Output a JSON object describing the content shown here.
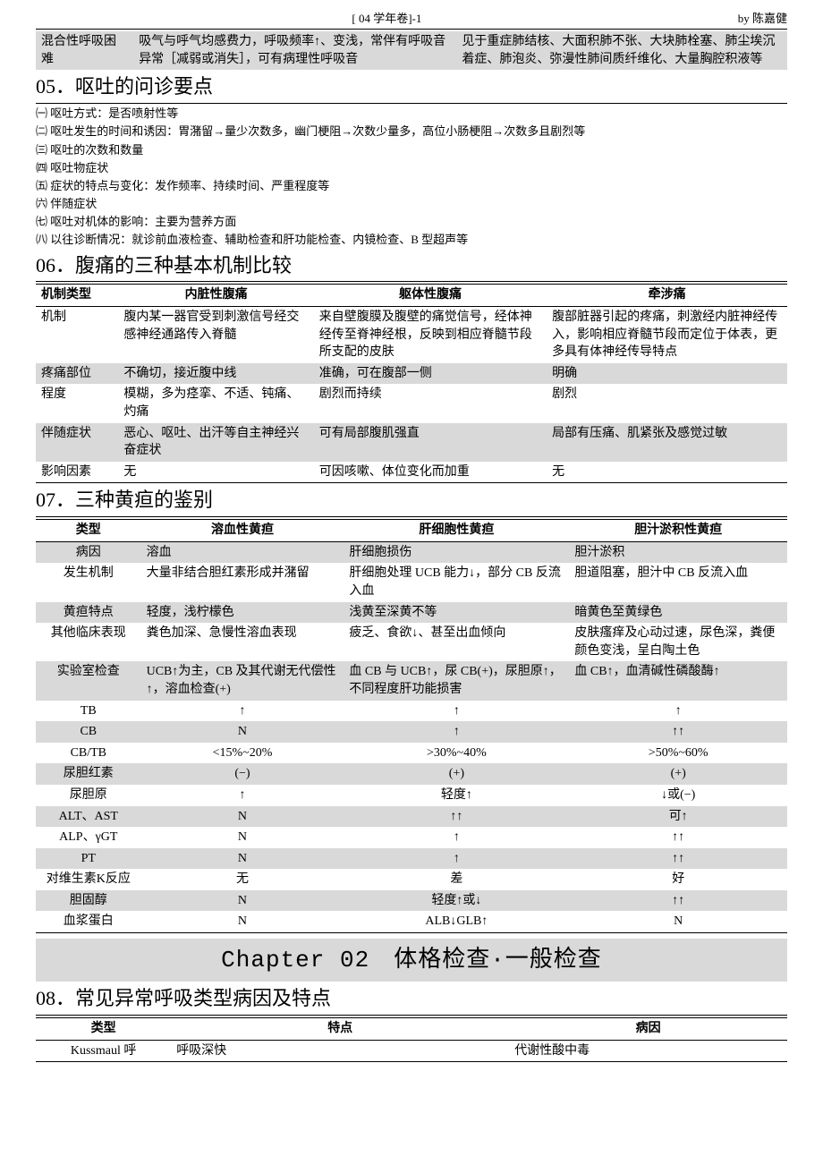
{
  "header": {
    "center": "[ 04 学年卷]-1",
    "right": "by 陈嘉健"
  },
  "table_top": {
    "rows": [
      {
        "grey": true,
        "c0": "混合性呼吸困难",
        "c1": "吸气与呼气均感费力，呼吸频率↑、变浅，常伴有呼吸音异常［减弱或消失］，可有病理性呼吸音",
        "c2": "见于重症肺结核、大面积肺不张、大块肺栓塞、肺尘埃沉着症、肺泡炎、弥漫性肺间质纤维化、大量胸腔积液等"
      }
    ]
  },
  "sec05": {
    "title": "05．呕吐的问诊要点",
    "items": [
      "㈠ 呕吐方式：是否喷射性等",
      "㈡ 呕吐发生的时间和诱因：胃潴留→量少次数多，幽门梗阻→次数少量多，高位小肠梗阻→次数多且剧烈等",
      "㈢ 呕吐的次数和数量",
      "㈣ 呕吐物症状",
      "㈤ 症状的特点与变化：发作频率、持续时间、严重程度等",
      "㈥ 伴随症状",
      "㈦ 呕吐对机体的影响：主要为营养方面",
      "㈧ 以往诊断情况：就诊前血液检查、辅助检查和肝功能检查、内镜检查、B 型超声等"
    ]
  },
  "sec06": {
    "title": "06．腹痛的三种基本机制比较",
    "headers": [
      "机制类型",
      "内脏性腹痛",
      "躯体性腹痛",
      "牵涉痛"
    ],
    "rows": [
      {
        "grey": false,
        "c0": "机制",
        "c1": "腹内某一器官受到刺激信号经交感神经通路传入脊髓",
        "c2": "来自壁腹膜及腹壁的痛觉信号，经体神经传至脊神经根，反映到相应脊髓节段所支配的皮肤",
        "c3": "腹部脏器引起的疼痛，刺激经内脏神经传入，影响相应脊髓节段而定位于体表，更多具有体神经传导特点"
      },
      {
        "grey": true,
        "c0": "疼痛部位",
        "c1": "不确切，接近腹中线",
        "c2": "准确，可在腹部一侧",
        "c3": "明确"
      },
      {
        "grey": false,
        "c0": "程度",
        "c1": "模糊，多为痉挛、不适、钝痛、灼痛",
        "c2": "剧烈而持续",
        "c3": "剧烈"
      },
      {
        "grey": true,
        "c0": "伴随症状",
        "c1": "恶心、呕吐、出汗等自主神经兴奋症状",
        "c2": "可有局部腹肌强直",
        "c3": "局部有压痛、肌紧张及感觉过敏"
      },
      {
        "grey": false,
        "c0": "影响因素",
        "c1": "无",
        "c2": "可因咳嗽、体位变化而加重",
        "c3": "无"
      }
    ]
  },
  "sec07": {
    "title": "07．三种黄疸的鉴别",
    "headers": [
      "类型",
      "溶血性黄疸",
      "肝细胞性黄疸",
      "胆汁淤积性黄疸"
    ],
    "rows": [
      {
        "grey": true,
        "c0": "病因",
        "c1": "溶血",
        "c2": "肝细胞损伤",
        "c3": "胆汁淤积"
      },
      {
        "grey": false,
        "c0": "发生机制",
        "c1": "大量非结合胆红素形成并潴留",
        "c2": "肝细胞处理 UCB 能力↓，部分 CB 反流入血",
        "c3": "胆道阻塞，胆汁中 CB 反流入血"
      },
      {
        "grey": true,
        "c0": "黄疸特点",
        "c1": "轻度，浅柠檬色",
        "c2": "浅黄至深黄不等",
        "c3": "暗黄色至黄绿色"
      },
      {
        "grey": false,
        "c0": "其他临床表现",
        "c1": "粪色加深、急慢性溶血表现",
        "c2": "疲乏、食欲↓、甚至出血倾向",
        "c3": "皮肤瘙痒及心动过速，尿色深，粪便颜色变浅，呈白陶土色"
      },
      {
        "grey": true,
        "c0": "实验室检查",
        "c1": "UCB↑为主，CB 及其代谢无代偿性↑，溶血检查(+)",
        "c2": "血 CB 与 UCB↑，尿 CB(+)，尿胆原↑，不同程度肝功能损害",
        "c3": "血 CB↑，血清碱性磷酸酶↑"
      },
      {
        "grey": false,
        "c0": "TB",
        "c1": "↑",
        "c2": "↑",
        "c3": "↑"
      },
      {
        "grey": true,
        "c0": "CB",
        "c1": "N",
        "c2": "↑",
        "c3": "↑↑"
      },
      {
        "grey": false,
        "c0": "CB/TB",
        "c1": "<15%~20%",
        "c2": ">30%~40%",
        "c3": ">50%~60%"
      },
      {
        "grey": true,
        "c0": "尿胆红素",
        "c1": "(−)",
        "c2": "(+)",
        "c3": "(+)"
      },
      {
        "grey": false,
        "c0": "尿胆原",
        "c1": "↑",
        "c2": "轻度↑",
        "c3": "↓或(−)"
      },
      {
        "grey": true,
        "c0": "ALT、AST",
        "c1": "N",
        "c2": "↑↑",
        "c3": "可↑"
      },
      {
        "grey": false,
        "c0": "ALP、γGT",
        "c1": "N",
        "c2": "↑",
        "c3": "↑↑"
      },
      {
        "grey": true,
        "c0": "PT",
        "c1": "N",
        "c2": "↑",
        "c3": "↑↑"
      },
      {
        "grey": false,
        "c0": "对维生素K反应",
        "c1": "无",
        "c2": "差",
        "c3": "好"
      },
      {
        "grey": true,
        "c0": "胆固醇",
        "c1": "N",
        "c2": "轻度↑或↓",
        "c3": "↑↑"
      },
      {
        "grey": false,
        "c0": "血浆蛋白",
        "c1": "N",
        "c2": "ALB↓GLB↑",
        "c3": "N"
      }
    ]
  },
  "chapter": "Chapter 02　体格检查·一般检查",
  "sec08": {
    "title": "08．常见异常呼吸类型病因及特点",
    "headers": [
      "类型",
      "特点",
      "病因"
    ],
    "rows": [
      {
        "grey": false,
        "c0": "Kussmaul 呼",
        "c1": "呼吸深快",
        "c2": "代谢性酸中毒"
      }
    ]
  }
}
